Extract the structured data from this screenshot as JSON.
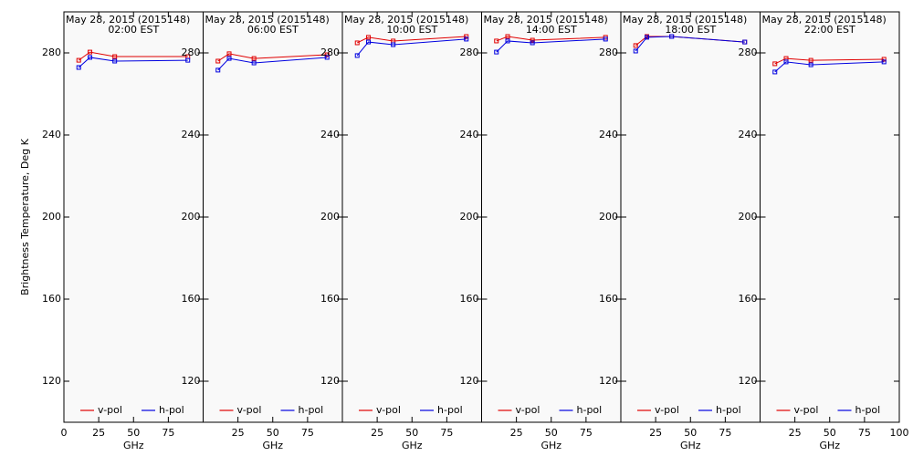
{
  "chart_data": [
    {
      "type": "line",
      "title": "May 28, 2015 (2015148)",
      "subtitle": "02:00 EST",
      "ylabel": "Brightness Temperature, Deg K",
      "xlabel": "GHz",
      "x": [
        10.65,
        18.7,
        36.5,
        89
      ],
      "xlim": [
        0,
        100
      ],
      "xticks": [
        0,
        25,
        50,
        75
      ],
      "ylim": [
        100,
        300
      ],
      "yticks": [
        120,
        160,
        200,
        240,
        280
      ],
      "series": [
        {
          "name": "v-pol",
          "color": "#e00000",
          "values": [
            276.4,
            280.4,
            278.2,
            278.2
          ]
        },
        {
          "name": "h-pol",
          "color": "#0000e0",
          "values": [
            272.9,
            277.8,
            276,
            276.4
          ]
        }
      ]
    },
    {
      "type": "line",
      "title": "May 28, 2015 (2015148)",
      "subtitle": "06:00 EST",
      "xlabel": "GHz",
      "x": [
        10.65,
        18.7,
        36.5,
        89
      ],
      "xlim": [
        0,
        100
      ],
      "xticks": [
        25,
        50,
        75
      ],
      "ylim": [
        100,
        300
      ],
      "yticks": [
        120,
        160,
        200,
        240,
        280
      ],
      "series": [
        {
          "name": "v-pol",
          "color": "#e00000",
          "values": [
            276,
            279.6,
            277.3,
            279.1
          ]
        },
        {
          "name": "h-pol",
          "color": "#0000e0",
          "values": [
            271.6,
            277.3,
            275.1,
            277.8
          ]
        }
      ]
    },
    {
      "type": "line",
      "title": "May 28, 2015 (2015148)",
      "subtitle": "10:00 EST",
      "xlabel": "GHz",
      "x": [
        10.65,
        18.7,
        36.5,
        89
      ],
      "xlim": [
        0,
        100
      ],
      "xticks": [
        25,
        50,
        75
      ],
      "ylim": [
        100,
        300
      ],
      "yticks": [
        120,
        160,
        200,
        240,
        280
      ],
      "series": [
        {
          "name": "v-pol",
          "color": "#e00000",
          "values": [
            284.9,
            287.6,
            285.8,
            288
          ]
        },
        {
          "name": "h-pol",
          "color": "#0000e0",
          "values": [
            278.7,
            285.3,
            284,
            286.7
          ]
        }
      ]
    },
    {
      "type": "line",
      "title": "May 28, 2015 (2015148)",
      "subtitle": "14:00 EST",
      "xlabel": "GHz",
      "x": [
        10.65,
        18.7,
        36.5,
        89
      ],
      "xlim": [
        0,
        100
      ],
      "xticks": [
        25,
        50,
        75
      ],
      "ylim": [
        100,
        300
      ],
      "yticks": [
        120,
        160,
        200,
        240,
        280
      ],
      "series": [
        {
          "name": "v-pol",
          "color": "#e00000",
          "values": [
            285.8,
            288,
            286.2,
            287.6
          ]
        },
        {
          "name": "h-pol",
          "color": "#0000e0",
          "values": [
            280.4,
            285.8,
            284.9,
            286.7
          ]
        }
      ]
    },
    {
      "type": "line",
      "title": "May 28, 2015 (2015148)",
      "subtitle": "18:00 EST",
      "xlabel": "GHz",
      "x": [
        10.65,
        18.7,
        36.5,
        89
      ],
      "xlim": [
        0,
        100
      ],
      "xticks": [
        25,
        50,
        75
      ],
      "ylim": [
        100,
        300
      ],
      "yticks": [
        120,
        160,
        200,
        240,
        280
      ],
      "series": [
        {
          "name": "v-pol",
          "color": "#e00000",
          "values": [
            283.6,
            288,
            288,
            285.3
          ]
        },
        {
          "name": "h-pol",
          "color": "#0000e0",
          "values": [
            280.9,
            287.6,
            288,
            285.3
          ]
        }
      ]
    },
    {
      "type": "line",
      "title": "May 28, 2015 (2015148)",
      "subtitle": "22:00 EST",
      "xlabel": "GHz",
      "x": [
        10.65,
        18.7,
        36.5,
        89
      ],
      "xlim": [
        0,
        100
      ],
      "xticks": [
        25,
        50,
        75,
        100
      ],
      "ylim": [
        100,
        300
      ],
      "yticks": [
        120,
        160,
        200,
        240,
        280
      ],
      "series": [
        {
          "name": "v-pol",
          "color": "#e00000",
          "values": [
            274.7,
            277.3,
            276.4,
            276.9
          ]
        },
        {
          "name": "h-pol",
          "color": "#0000e0",
          "values": [
            270.7,
            275.6,
            274.2,
            275.6
          ]
        }
      ]
    }
  ]
}
